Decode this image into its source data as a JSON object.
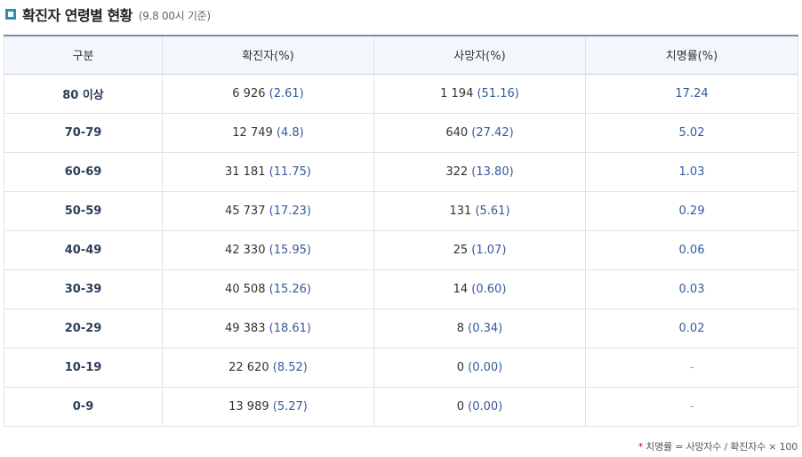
{
  "header": {
    "title": "확진자 연령별 현황",
    "subtitle": "(9.8 00시 기준)"
  },
  "table": {
    "columns": [
      "구분",
      "확진자(%)",
      "사망자(%)",
      "치명률(%)"
    ],
    "rows": [
      {
        "age": "80 이상",
        "cases": "6 926",
        "cases_pct": "(2.61)",
        "deaths": "1 194",
        "deaths_pct": "(51.16)",
        "fatality": "17.24"
      },
      {
        "age": "70-79",
        "cases": "12 749",
        "cases_pct": "(4.8)",
        "deaths": "640",
        "deaths_pct": "(27.42)",
        "fatality": "5.02"
      },
      {
        "age": "60-69",
        "cases": "31 181",
        "cases_pct": "(11.75)",
        "deaths": "322",
        "deaths_pct": "(13.80)",
        "fatality": "1.03"
      },
      {
        "age": "50-59",
        "cases": "45 737",
        "cases_pct": "(17.23)",
        "deaths": "131",
        "deaths_pct": "(5.61)",
        "fatality": "0.29"
      },
      {
        "age": "40-49",
        "cases": "42 330",
        "cases_pct": "(15.95)",
        "deaths": "25",
        "deaths_pct": "(1.07)",
        "fatality": "0.06"
      },
      {
        "age": "30-39",
        "cases": "40 508",
        "cases_pct": "(15.26)",
        "deaths": "14",
        "deaths_pct": "(0.60)",
        "fatality": "0.03"
      },
      {
        "age": "20-29",
        "cases": "49 383",
        "cases_pct": "(18.61)",
        "deaths": "8",
        "deaths_pct": "(0.34)",
        "fatality": "0.02"
      },
      {
        "age": "10-19",
        "cases": "22 620",
        "cases_pct": "(8.52)",
        "deaths": "0",
        "deaths_pct": "(0.00)",
        "fatality": "-"
      },
      {
        "age": "0-9",
        "cases": "13 989",
        "cases_pct": "(5.27)",
        "deaths": "0",
        "deaths_pct": "(0.00)",
        "fatality": "-"
      }
    ]
  },
  "footnote": {
    "marker": "*",
    "text": "치명률 = 사망자수 / 확진자수 × 100"
  },
  "colors": {
    "accent": "#2a8fb0",
    "header_border": "#6e8fb0",
    "value_blue": "#36599a"
  }
}
